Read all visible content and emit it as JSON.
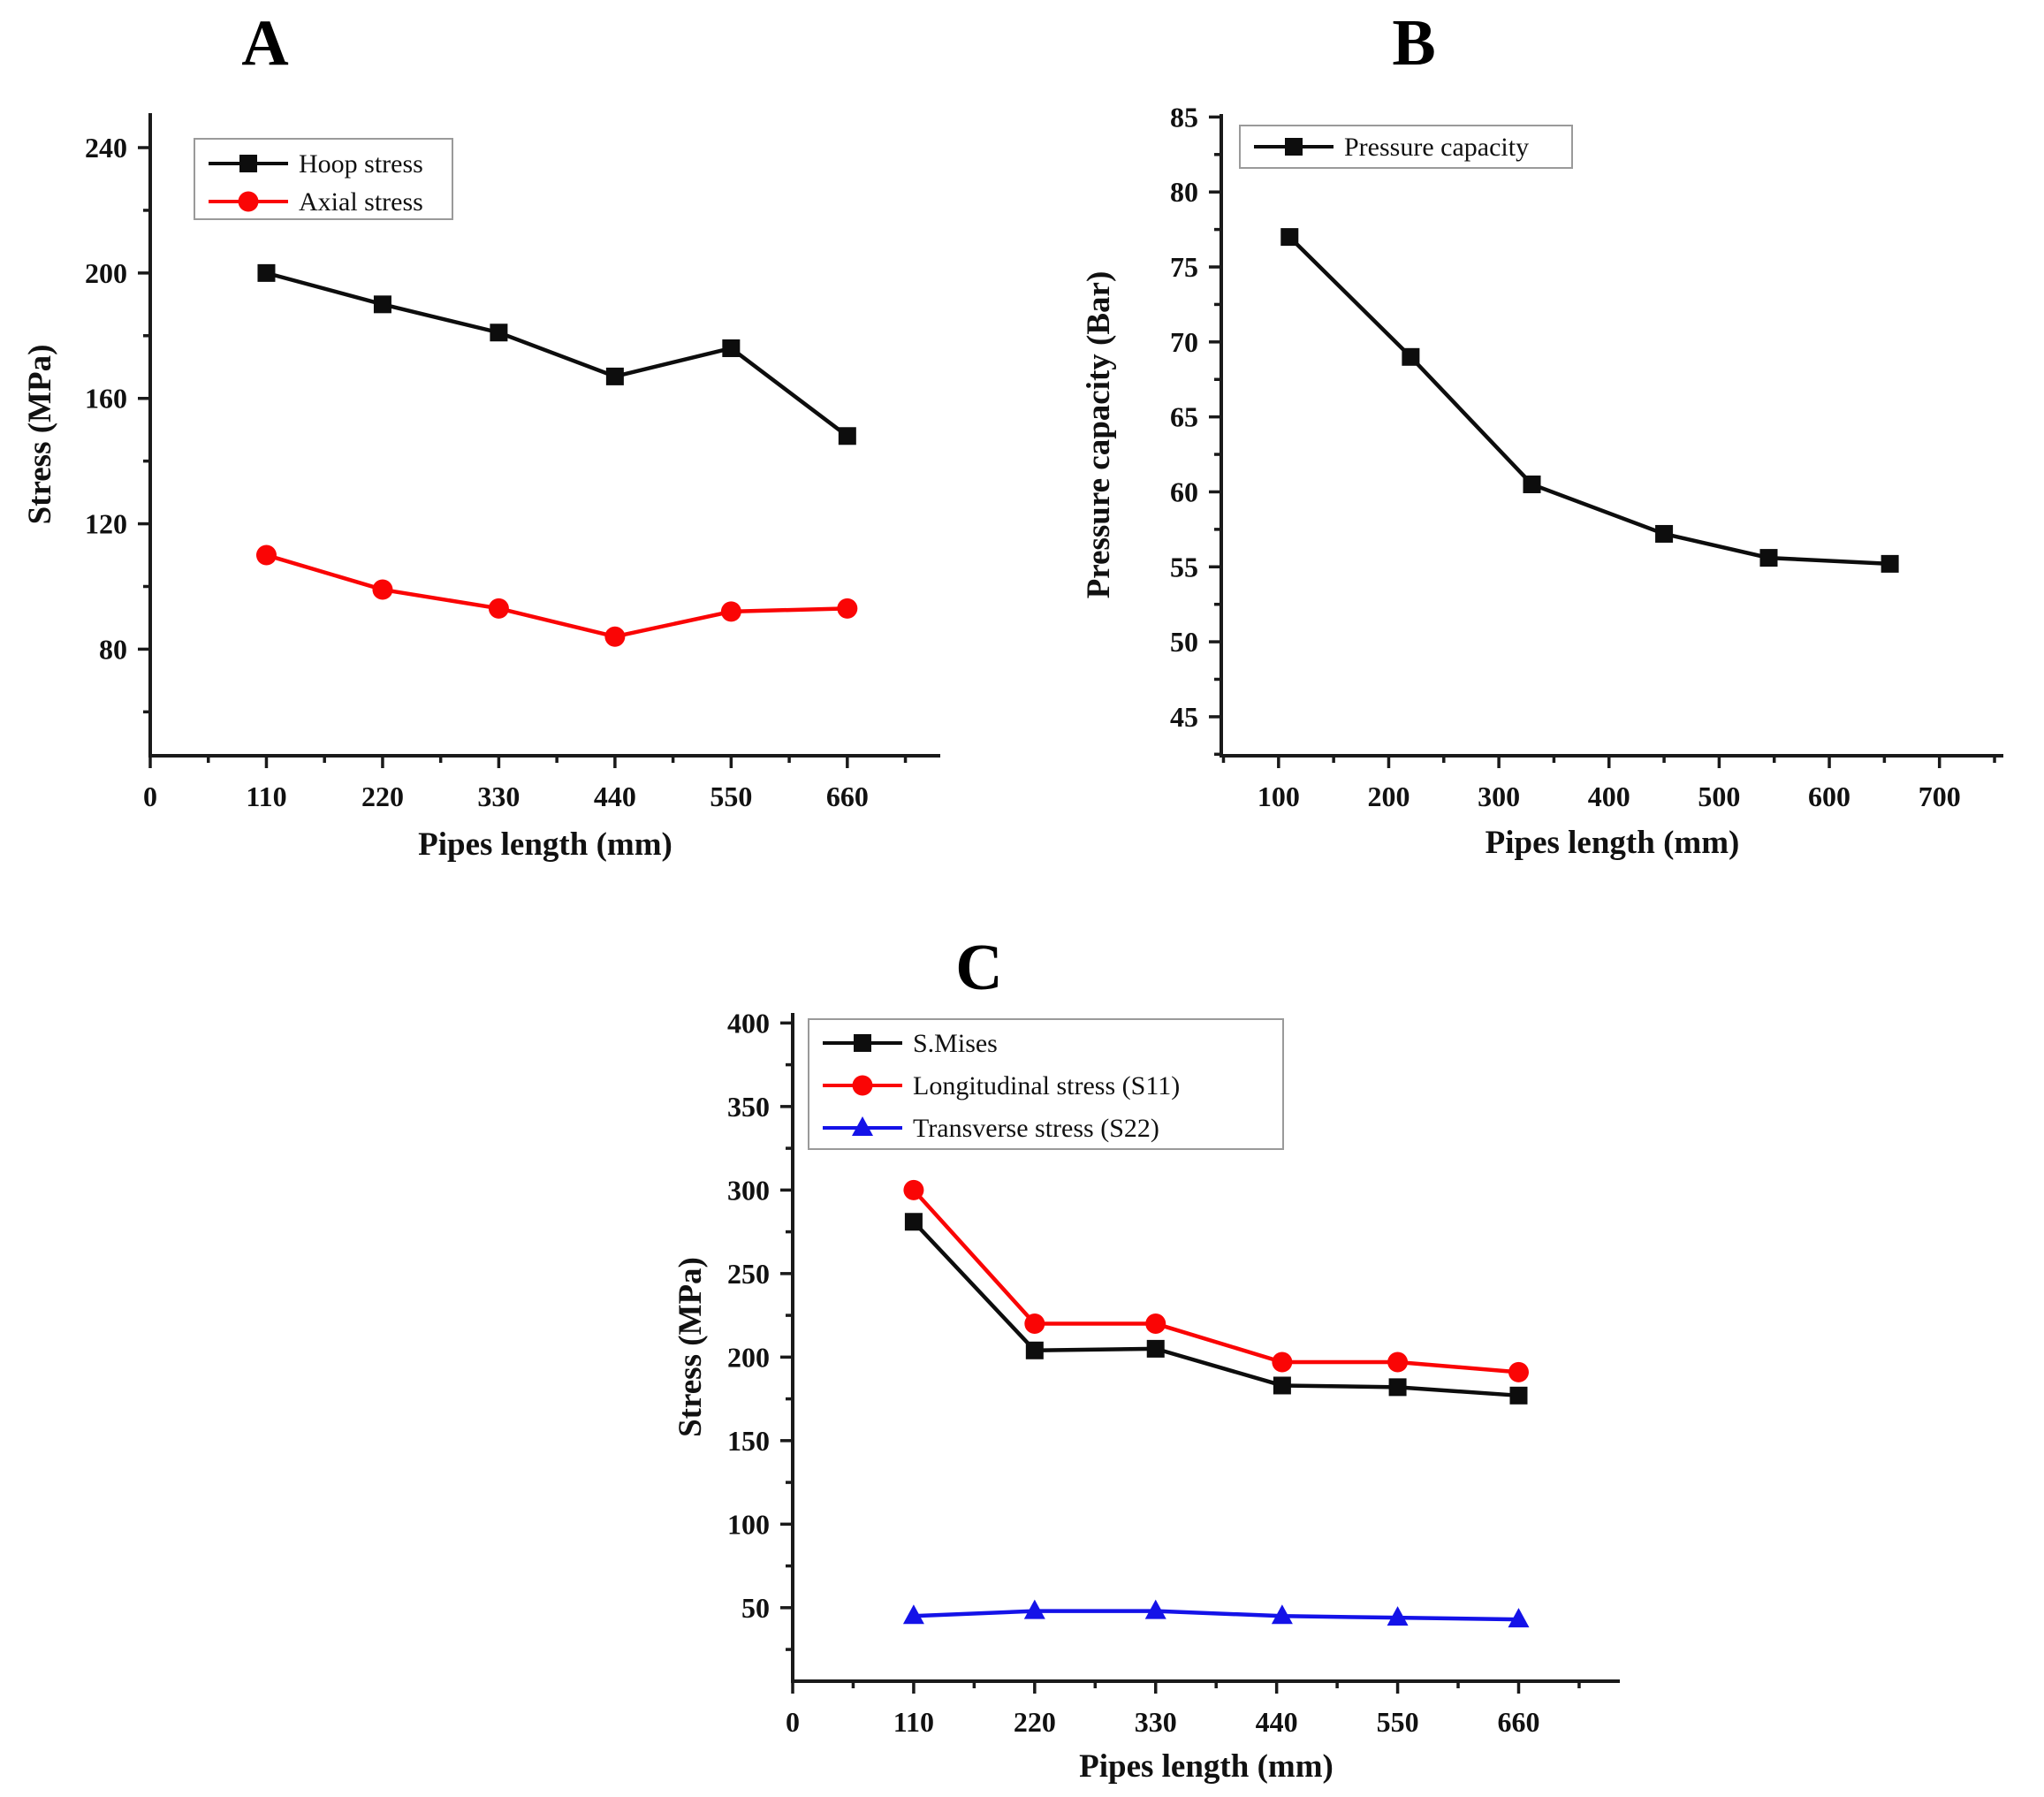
{
  "page": {
    "background": "#ffffff"
  },
  "chart_data": [
    {
      "id": "a",
      "type": "line",
      "title": "A",
      "xlabel": "Pipes length (mm)",
      "ylabel": "Stress (MPa)",
      "xlim": [
        0,
        748
      ],
      "ylim": [
        46,
        251
      ],
      "x_major_ticks": [
        0,
        110,
        220,
        330,
        440,
        550,
        660
      ],
      "x_minor_step": 55,
      "y_major_ticks": [
        80,
        120,
        160,
        200,
        240
      ],
      "y_minor_step": 20,
      "grid": false,
      "legend_position": "top-left",
      "x": [
        110,
        220,
        330,
        440,
        550,
        660
      ],
      "series": [
        {
          "name": "Hoop stress",
          "color": "#0d0d0d",
          "marker": "square",
          "values": [
            200,
            190,
            181,
            167,
            176,
            148
          ]
        },
        {
          "name": "Axial stress",
          "color": "#fa0505",
          "marker": "circle",
          "values": [
            110,
            99,
            93,
            84,
            92,
            93
          ]
        }
      ]
    },
    {
      "id": "b",
      "type": "line",
      "title": "B",
      "xlabel": "Pipes length (mm)",
      "ylabel": "Pressure capacity (Bar)",
      "xlim": [
        48,
        758
      ],
      "ylim": [
        42.4,
        85.2
      ],
      "x_major_ticks": [
        100,
        200,
        300,
        400,
        500,
        600,
        700
      ],
      "x_minor_step": 50,
      "y_major_ticks": [
        45,
        50,
        55,
        60,
        65,
        70,
        75,
        80,
        85
      ],
      "y_minor_step": 2.5,
      "grid": false,
      "legend_position": "top-left",
      "x": [
        110,
        220,
        330,
        450,
        545,
        655
      ],
      "series": [
        {
          "name": "Pressure capacity",
          "color": "#0d0d0d",
          "marker": "square",
          "values": [
            77,
            69,
            60.5,
            57.2,
            55.6,
            55.2
          ]
        }
      ]
    },
    {
      "id": "c",
      "type": "line",
      "title": "C",
      "xlabel": "Pipes length (mm)",
      "ylabel": "Stress (MPa)",
      "xlim": [
        0,
        752
      ],
      "ylim": [
        6,
        406
      ],
      "x_major_ticks": [
        0,
        110,
        220,
        330,
        440,
        550,
        660
      ],
      "x_minor_step": 55,
      "y_major_ticks": [
        50,
        100,
        150,
        200,
        250,
        300,
        350,
        400
      ],
      "y_minor_step": 25,
      "grid": false,
      "legend_position": "top-left",
      "x": [
        110,
        220,
        330,
        445,
        550,
        660
      ],
      "series": [
        {
          "name": "S.Mises",
          "color": "#0d0d0d",
          "marker": "square",
          "values": [
            281,
            204,
            205,
            183,
            182,
            177
          ]
        },
        {
          "name": "Longitudinal stress (S11)",
          "color": "#fa0505",
          "marker": "circle",
          "values": [
            300,
            220,
            220,
            197,
            197,
            191
          ]
        },
        {
          "name": "Transverse stress (S22)",
          "color": "#1412e8",
          "marker": "triangle",
          "values": [
            45,
            48,
            48,
            45,
            44,
            43
          ]
        }
      ]
    }
  ]
}
